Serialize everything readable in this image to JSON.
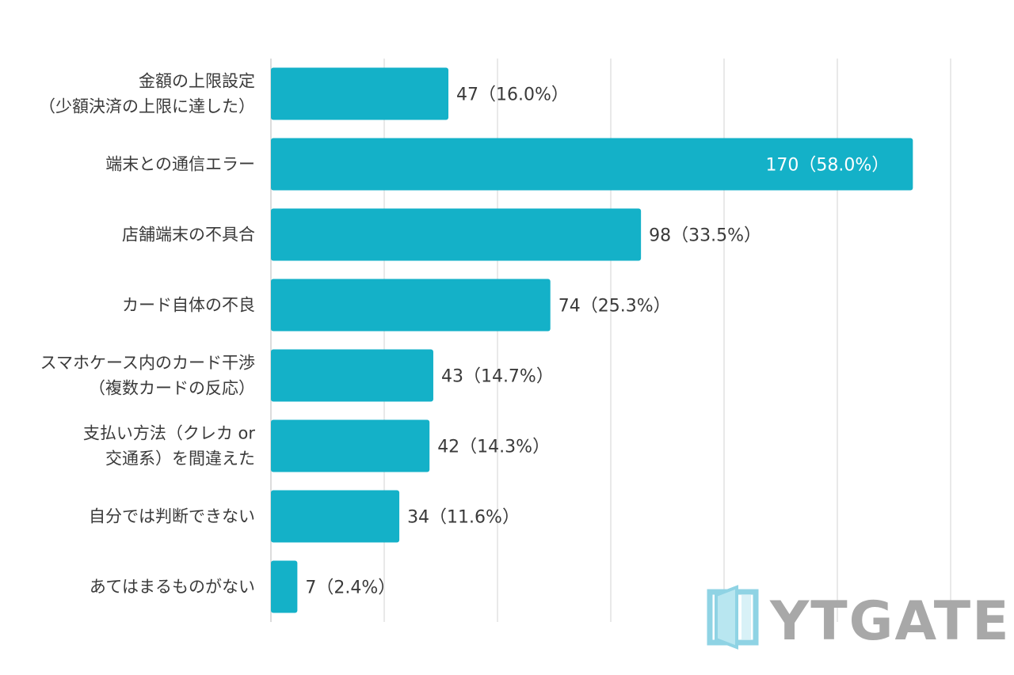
{
  "chart_data": {
    "type": "bar",
    "orientation": "horizontal",
    "categories": [
      [
        "金額の上限設定",
        "（少額決済の上限に達した）"
      ],
      [
        "端末との通信エラー"
      ],
      [
        "店舗端末の不具合"
      ],
      [
        "カード自体の不良"
      ],
      [
        "スマホケース内のカード干渉",
        "（複数カードの反応）"
      ],
      [
        "支払い方法（クレカ or",
        "交通系）を間違えた"
      ],
      [
        "自分では判断できない"
      ],
      [
        "あてはまるものがない"
      ]
    ],
    "values": [
      47,
      170,
      98,
      74,
      43,
      42,
      34,
      7
    ],
    "value_labels": [
      "47（16.0%）",
      "170（58.0%）",
      "98（33.5%）",
      "74（25.3%）",
      "43（14.7%）",
      "42（14.3%）",
      "34（11.6%）",
      "7（2.4%）"
    ],
    "xlim": [
      0,
      180
    ],
    "grid_step": 30,
    "grid": true,
    "bar_color": "#14b1c8"
  },
  "watermark": {
    "text": "YTGATE",
    "icon": "door-logo-icon",
    "icon_color": "#8fd3e4",
    "text_color": "#a8a8a8"
  }
}
